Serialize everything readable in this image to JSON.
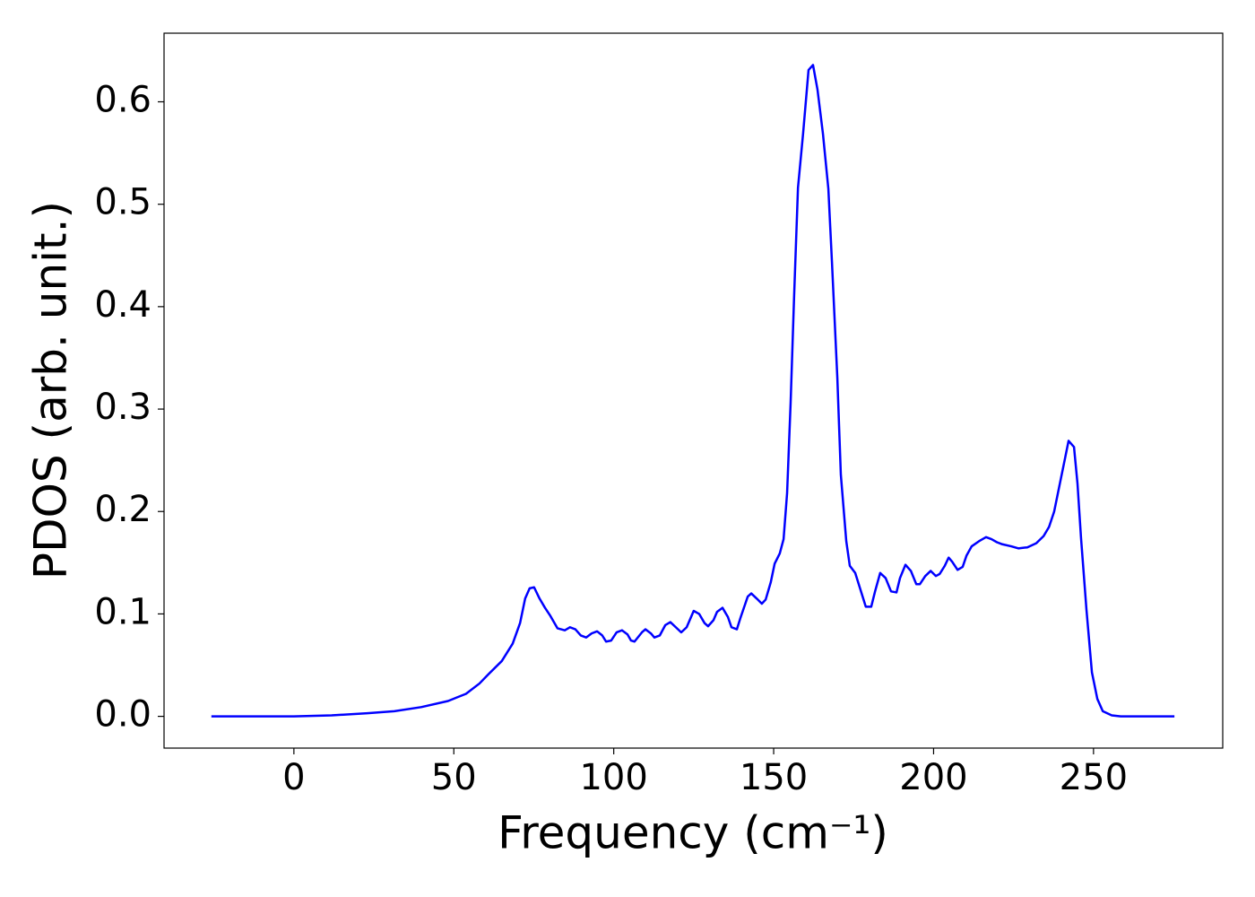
{
  "chart_data": {
    "type": "line",
    "xlabel": "Frequency (cm⁻¹)",
    "ylabel": "PDOS (arb. unit.)",
    "xlim": [
      -40.6,
      290.4
    ],
    "ylim": [
      -0.031,
      0.667
    ],
    "xticks": [
      0,
      50,
      100,
      150,
      200,
      250
    ],
    "yticks": [
      {
        "value": 0,
        "label": "0.0"
      },
      0.1,
      0.2,
      0.3,
      0.4,
      0.5,
      0.6
    ],
    "grid": false,
    "series": [
      {
        "color": "#0000ff",
        "x": [
          -25.8,
          0,
          11.8,
          23.0,
          31.4,
          39.8,
          48.2,
          53.8,
          58.0,
          60.8,
          65.0,
          68.4,
          70.7,
          72.3,
          73.7,
          75.1,
          76.8,
          78.5,
          80.2,
          82.4,
          84.7,
          86.3,
          88.0,
          89.7,
          91.4,
          93.1,
          94.8,
          96.4,
          97.6,
          99.2,
          100.9,
          102.6,
          104.3,
          105.4,
          106.5,
          108.8,
          109.9,
          111.6,
          112.7,
          114.4,
          116.1,
          117.7,
          119.4,
          121.1,
          122.8,
          125.0,
          126.7,
          128.4,
          129.5,
          131.2,
          132.3,
          134.0,
          135.7,
          136.8,
          138.5,
          139.6,
          141.9,
          143.0,
          144.7,
          146.3,
          147.5,
          149.1,
          150.3,
          151.9,
          153.1,
          154.2,
          155.3,
          156.4,
          157.6,
          159.2,
          160.9,
          162.3,
          163.7,
          165.4,
          167.1,
          168.2,
          169.9,
          171.0,
          172.7,
          173.8,
          175.5,
          177.2,
          178.8,
          180.5,
          181.7,
          183.3,
          185.0,
          186.7,
          188.4,
          189.5,
          191.2,
          192.9,
          194.6,
          195.7,
          197.4,
          199.1,
          200.7,
          201.9,
          203.5,
          204.7,
          205.8,
          207.5,
          209.1,
          210.3,
          211.9,
          214.2,
          216.4,
          218.1,
          219.8,
          221.5,
          224.3,
          226.5,
          229.3,
          232.1,
          234.4,
          236.1,
          237.7,
          239.4,
          241.1,
          242.2,
          243.9,
          245.0,
          246.1,
          247.8,
          249.5,
          251.2,
          252.9,
          255.7,
          258.5,
          275.3
        ],
        "values": [
          0,
          0,
          0.001,
          0.003,
          0.005,
          0.009,
          0.015,
          0.022,
          0.032,
          0.041,
          0.054,
          0.071,
          0.091,
          0.115,
          0.125,
          0.126,
          0.115,
          0.106,
          0.098,
          0.086,
          0.084,
          0.087,
          0.085,
          0.079,
          0.077,
          0.081,
          0.083,
          0.079,
          0.073,
          0.074,
          0.082,
          0.084,
          0.08,
          0.074,
          0.073,
          0.082,
          0.085,
          0.081,
          0.077,
          0.079,
          0.089,
          0.092,
          0.087,
          0.082,
          0.087,
          0.103,
          0.1,
          0.091,
          0.088,
          0.094,
          0.102,
          0.106,
          0.097,
          0.087,
          0.085,
          0.096,
          0.117,
          0.12,
          0.115,
          0.11,
          0.114,
          0.131,
          0.149,
          0.159,
          0.173,
          0.218,
          0.306,
          0.411,
          0.516,
          0.569,
          0.631,
          0.636,
          0.612,
          0.569,
          0.515,
          0.445,
          0.331,
          0.236,
          0.171,
          0.147,
          0.14,
          0.123,
          0.107,
          0.107,
          0.122,
          0.14,
          0.135,
          0.122,
          0.121,
          0.135,
          0.148,
          0.142,
          0.129,
          0.129,
          0.137,
          0.142,
          0.137,
          0.139,
          0.147,
          0.155,
          0.151,
          0.143,
          0.146,
          0.157,
          0.166,
          0.171,
          0.175,
          0.173,
          0.17,
          0.168,
          0.166,
          0.164,
          0.165,
          0.169,
          0.176,
          0.185,
          0.2,
          0.226,
          0.252,
          0.269,
          0.263,
          0.227,
          0.174,
          0.104,
          0.043,
          0.017,
          0.005,
          0.001,
          0,
          0
        ]
      }
    ]
  }
}
